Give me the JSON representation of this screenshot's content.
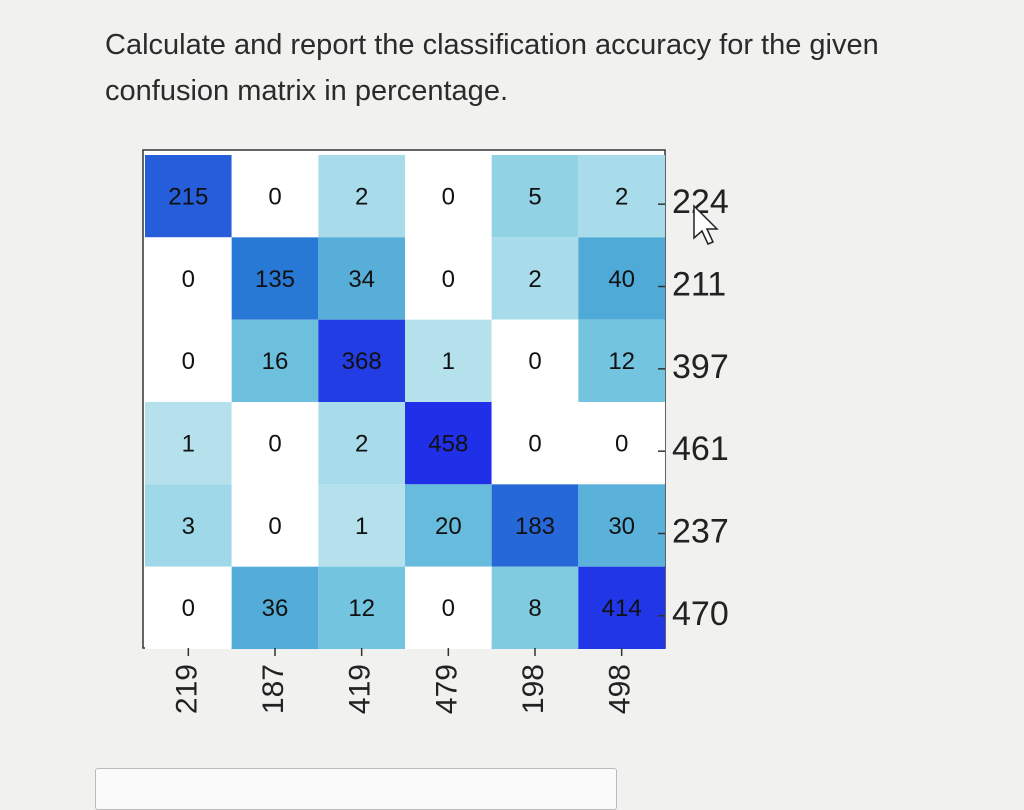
{
  "question": {
    "text": "Calculate and report the classification accuracy for the given confusion matrix in percentage."
  },
  "matrix": {
    "rows": [
      [
        215,
        0,
        2,
        0,
        5,
        2
      ],
      [
        0,
        135,
        34,
        0,
        2,
        40
      ],
      [
        0,
        16,
        368,
        1,
        0,
        12
      ],
      [
        1,
        0,
        2,
        458,
        0,
        0
      ],
      [
        3,
        0,
        1,
        20,
        183,
        30
      ],
      [
        0,
        36,
        12,
        0,
        8,
        414
      ]
    ],
    "row_totals": [
      224,
      211,
      397,
      461,
      237,
      470
    ],
    "column_totals": [
      219,
      187,
      419,
      479,
      198,
      498
    ]
  }
}
